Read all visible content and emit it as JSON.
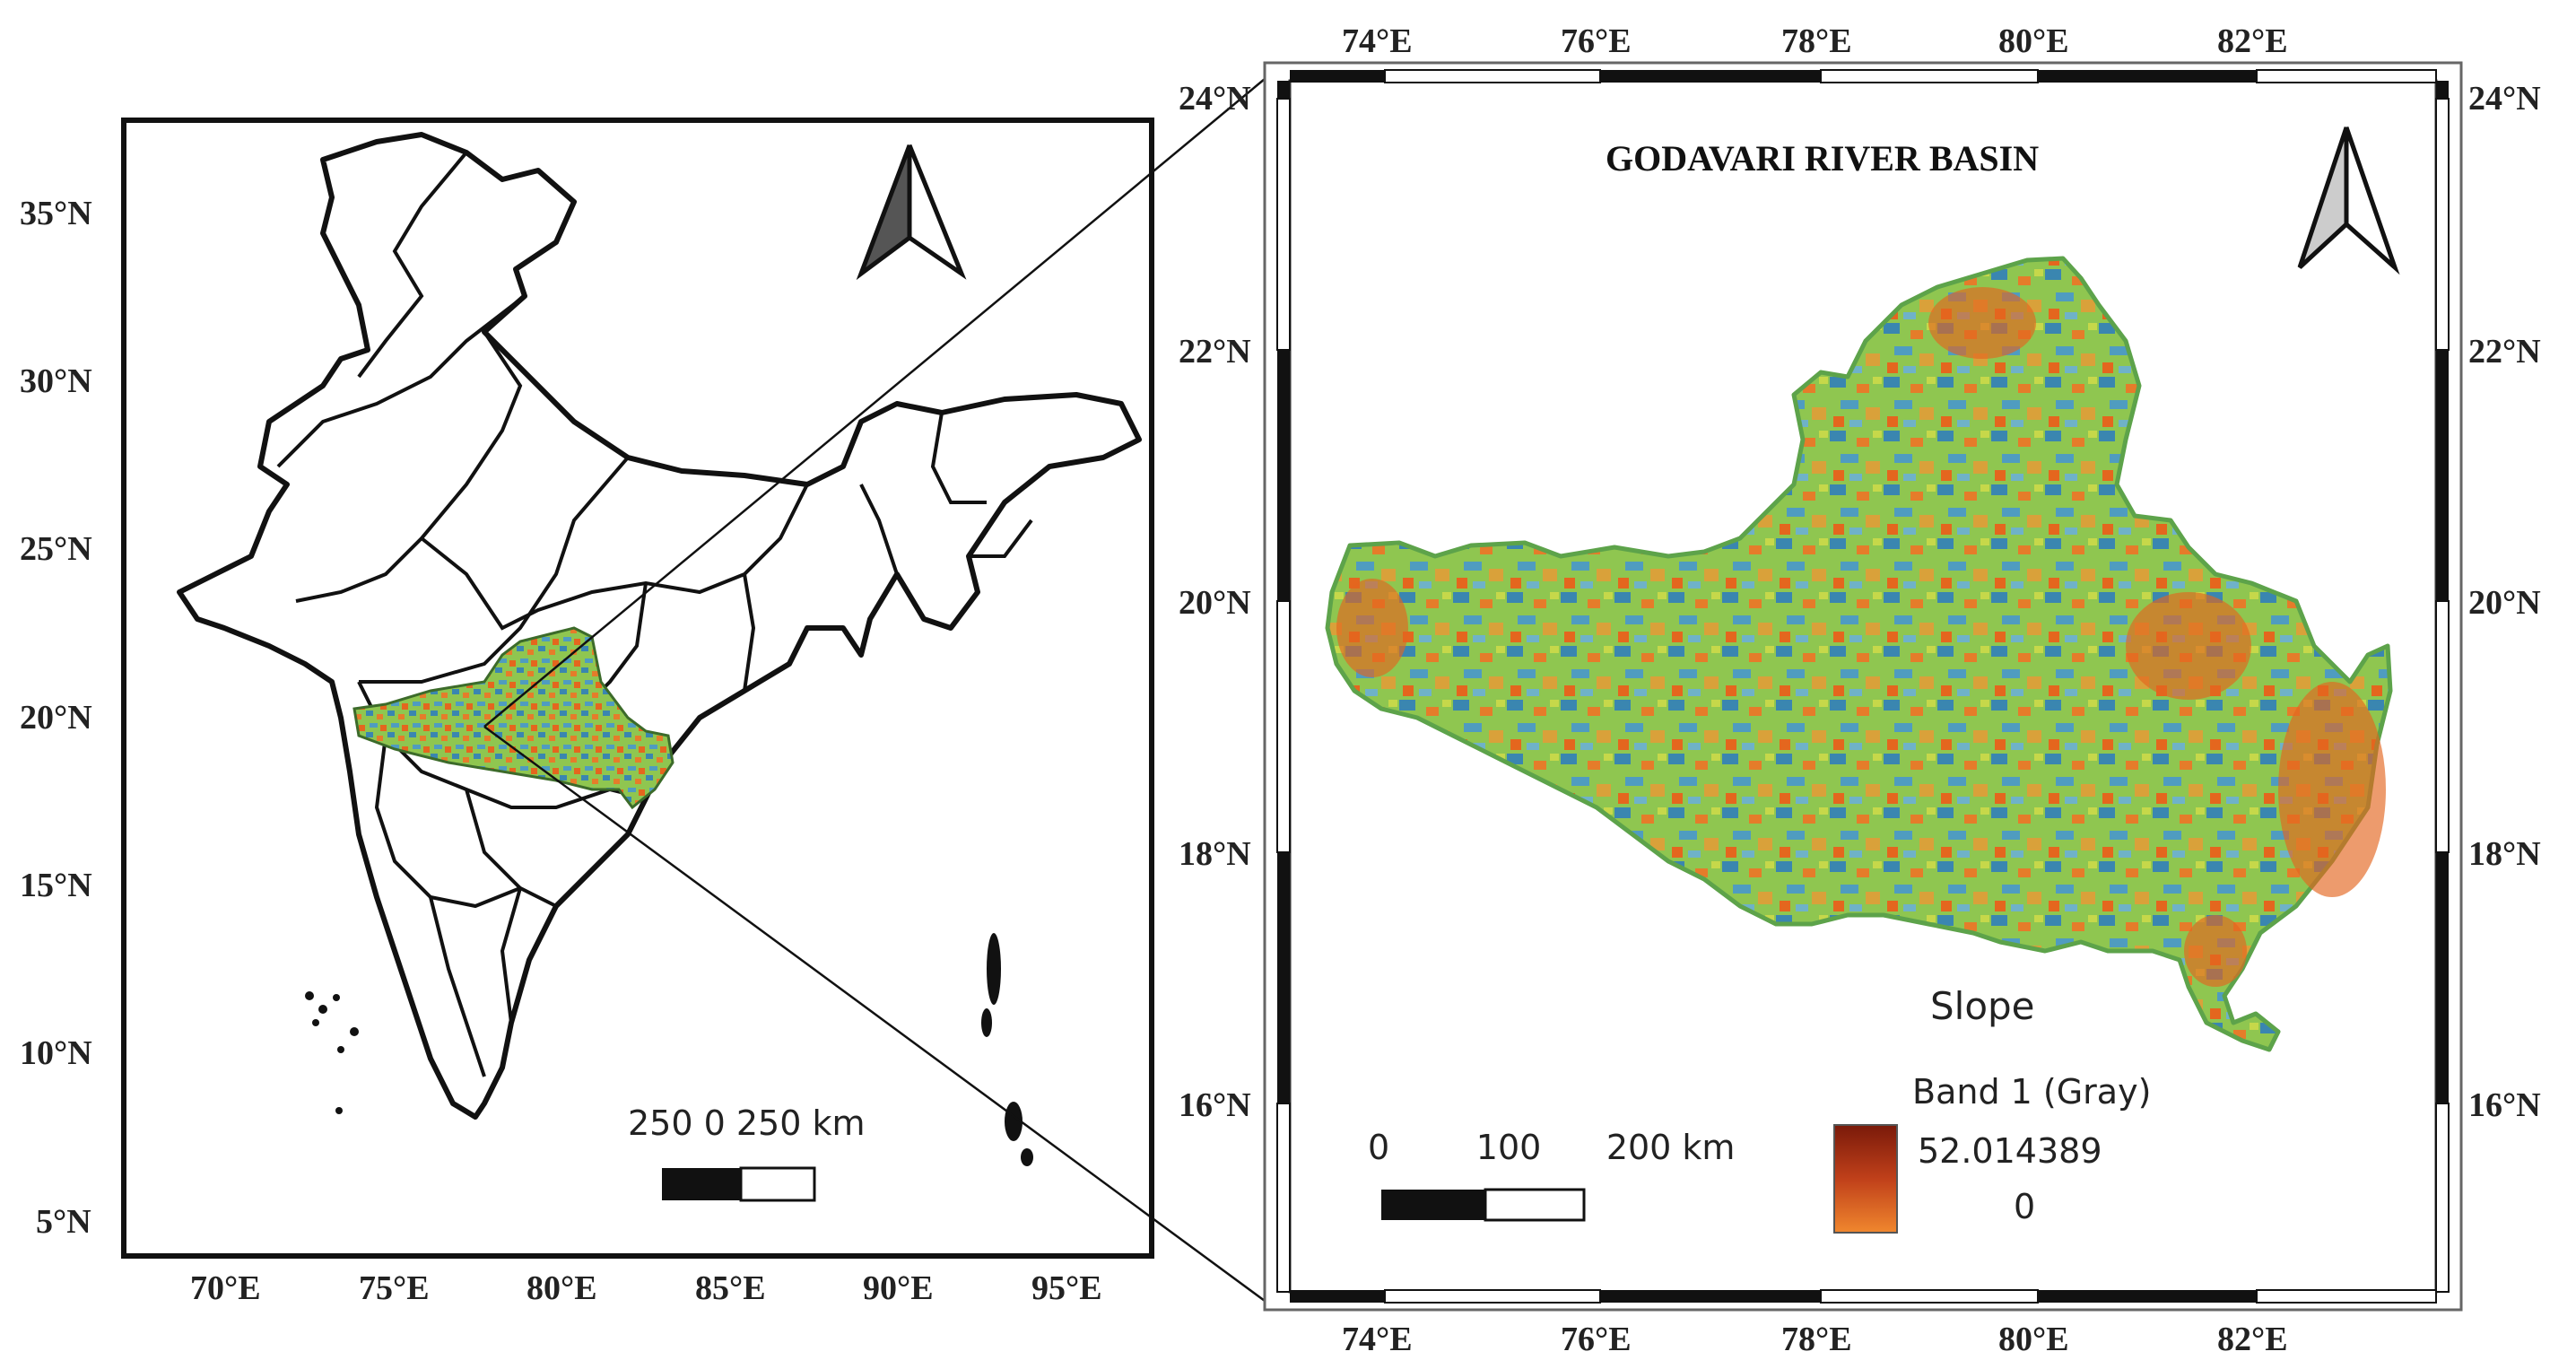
{
  "india_map": {
    "lat_labels": [
      "35°N",
      "30°N",
      "25°N",
      "20°N",
      "15°N",
      "10°N",
      "5°N"
    ],
    "lon_labels": [
      "70°E",
      "75°E",
      "80°E",
      "85°E",
      "90°E",
      "95°E"
    ],
    "scale_bar_label": "250   0   250 km"
  },
  "basin_map": {
    "title": "GODAVARI RIVER BASIN",
    "lon_labels": [
      "74°E",
      "76°E",
      "78°E",
      "80°E",
      "82°E"
    ],
    "lat_labels": [
      "24°N",
      "22°N",
      "20°N",
      "18°N",
      "16°N"
    ],
    "scale_bar_label": "0        100      200 km",
    "legend": {
      "title": "Slope",
      "band_label": "Band 1 (Gray)",
      "max_value": "52.014389",
      "min_value": "0"
    }
  },
  "colors": {
    "slope_high": "#e4661e",
    "slope_mid": "#a8d24a",
    "slope_low": "#2f78a8",
    "legend_top": "#7a1a0a",
    "legend_bottom": "#f0872e"
  }
}
